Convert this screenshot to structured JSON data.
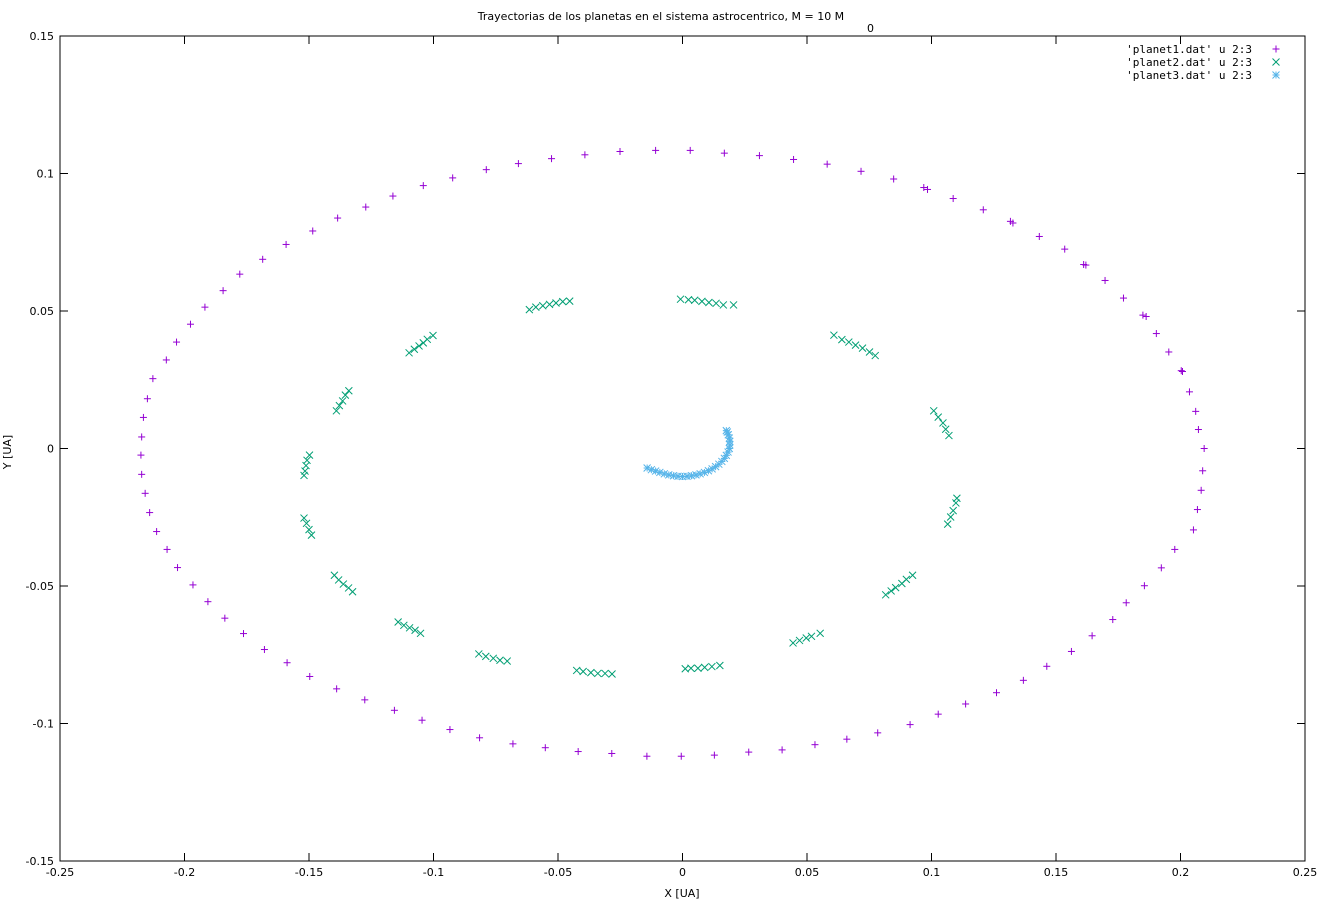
{
  "chart_data": {
    "type": "scatter",
    "title": "Trayectorias de los planetas en el sistema astrocentrico, M = 10 M",
    "title_subscript": "0",
    "xlabel": "X [UA]",
    "ylabel": "Y [UA]",
    "xlim": [
      -0.25,
      0.25
    ],
    "ylim": [
      -0.15,
      0.15
    ],
    "xticks": [
      "-0.25",
      "-0.2",
      "-0.15",
      "-0.1",
      "-0.05",
      "0",
      "0.05",
      "0.1",
      "0.15",
      "0.2",
      "0.25"
    ],
    "yticks": [
      "0.15",
      "0.1",
      "0.05",
      "0",
      "-0.05",
      "-0.1",
      "-0.15"
    ],
    "grid": false,
    "legend_position": "top-right",
    "series": [
      {
        "name": "'planet1.dat' u 2:3",
        "marker": "+",
        "color": "#9400d3",
        "points": [
          [
            0.2095,
            0.0
          ],
          [
            0.2089,
            -0.0081
          ],
          [
            0.2083,
            -0.0152
          ],
          [
            0.2068,
            -0.0222
          ],
          [
            0.2052,
            -0.0296
          ],
          [
            0.1977,
            -0.0367
          ],
          [
            0.1923,
            -0.0434
          ],
          [
            0.1855,
            -0.0499
          ],
          [
            0.1782,
            -0.0561
          ],
          [
            0.1728,
            -0.0622
          ],
          [
            0.1645,
            -0.0681
          ],
          [
            0.1562,
            -0.0738
          ],
          [
            0.1463,
            -0.0792
          ],
          [
            0.1369,
            -0.0843
          ],
          [
            0.1261,
            -0.0888
          ],
          [
            0.1137,
            -0.0929
          ],
          [
            0.1027,
            -0.0966
          ],
          [
            0.0914,
            -0.1004
          ],
          [
            0.0784,
            -0.1034
          ],
          [
            0.066,
            -0.1057
          ],
          [
            0.0532,
            -0.1077
          ],
          [
            0.04,
            -0.1096
          ],
          [
            0.0266,
            -0.1104
          ],
          [
            0.0128,
            -0.1115
          ],
          [
            -0.0005,
            -0.1119
          ],
          [
            -0.0143,
            -0.1119
          ],
          [
            -0.0284,
            -0.1109
          ],
          [
            -0.0419,
            -0.1102
          ],
          [
            -0.0551,
            -0.1088
          ],
          [
            -0.0681,
            -0.1074
          ],
          [
            -0.0815,
            -0.1052
          ],
          [
            -0.0934,
            -0.1022
          ],
          [
            -0.1046,
            -0.0988
          ],
          [
            -0.1157,
            -0.0952
          ],
          [
            -0.1276,
            -0.0914
          ],
          [
            -0.1389,
            -0.0874
          ],
          [
            -0.1497,
            -0.0829
          ],
          [
            -0.1588,
            -0.0779
          ],
          [
            -0.1679,
            -0.0731
          ],
          [
            -0.1763,
            -0.0673
          ],
          [
            -0.1838,
            -0.0617
          ],
          [
            -0.1906,
            -0.0557
          ],
          [
            -0.1966,
            -0.0496
          ],
          [
            -0.2028,
            -0.0433
          ],
          [
            -0.207,
            -0.0367
          ],
          [
            -0.2112,
            -0.0302
          ],
          [
            -0.214,
            -0.0233
          ],
          [
            -0.2158,
            -0.0163
          ],
          [
            -0.2172,
            -0.0094
          ],
          [
            -0.2175,
            -0.0024
          ],
          [
            -0.2172,
            0.0042
          ],
          [
            -0.2165,
            0.0113
          ],
          [
            -0.2149,
            0.0181
          ],
          [
            -0.2127,
            0.0254
          ],
          [
            -0.2073,
            0.0322
          ],
          [
            -0.2032,
            0.0387
          ],
          [
            -0.1976,
            0.0452
          ],
          [
            -0.1918,
            0.0514
          ],
          [
            -0.1845,
            0.0574
          ],
          [
            -0.1778,
            0.0634
          ],
          [
            -0.1686,
            0.0688
          ],
          [
            -0.1592,
            0.0742
          ],
          [
            -0.1485,
            0.0791
          ],
          [
            -0.1385,
            0.0838
          ],
          [
            -0.1272,
            0.0878
          ],
          [
            -0.1163,
            0.0918
          ],
          [
            -0.1041,
            0.0956
          ],
          [
            -0.0923,
            0.0984
          ],
          [
            -0.0788,
            0.1014
          ],
          [
            -0.0659,
            0.1036
          ],
          [
            -0.0526,
            0.1054
          ],
          [
            -0.0392,
            0.1068
          ],
          [
            -0.0251,
            0.108
          ],
          [
            -0.0108,
            0.1084
          ],
          [
            0.0031,
            0.1084
          ],
          [
            0.0168,
            0.1074
          ],
          [
            0.0309,
            0.1065
          ],
          [
            0.0446,
            0.1051
          ],
          [
            0.0581,
            0.1034
          ],
          [
            0.0717,
            0.1008
          ],
          [
            0.0848,
            0.098
          ],
          [
            0.0969,
            0.0949
          ],
          [
            0.0984,
            0.0942
          ],
          [
            0.1087,
            0.0909
          ],
          [
            0.1208,
            0.0868
          ],
          [
            0.1317,
            0.0826
          ],
          [
            0.1327,
            0.082
          ],
          [
            0.1433,
            0.0771
          ],
          [
            0.1535,
            0.0725
          ],
          [
            0.1611,
            0.0669
          ],
          [
            0.162,
            0.0667
          ],
          [
            0.1697,
            0.0611
          ],
          [
            0.1771,
            0.0547
          ],
          [
            0.1849,
            0.0485
          ],
          [
            0.1862,
            0.048
          ],
          [
            0.1903,
            0.0418
          ],
          [
            0.1953,
            0.0351
          ],
          [
            0.2003,
            0.0283
          ],
          [
            0.2008,
            0.028
          ],
          [
            0.2036,
            0.0206
          ],
          [
            0.2061,
            0.0135
          ],
          [
            0.2072,
            0.0069
          ]
        ]
      },
      {
        "name": "'planet2.dat' u 2:3",
        "marker": "x",
        "color": "#009e73",
        "points": [
          [
            -0.0615,
            0.0505
          ],
          [
            -0.0589,
            0.0514
          ],
          [
            -0.0561,
            0.0519
          ],
          [
            -0.0534,
            0.0524
          ],
          [
            -0.0508,
            0.0529
          ],
          [
            -0.0481,
            0.0534
          ],
          [
            -0.0453,
            0.0536
          ],
          [
            -0.0008,
            0.0543
          ],
          [
            0.0024,
            0.0541
          ],
          [
            0.0049,
            0.0539
          ],
          [
            0.0078,
            0.0535
          ],
          [
            0.0106,
            0.0531
          ],
          [
            0.0135,
            0.0528
          ],
          [
            0.0164,
            0.0522
          ],
          [
            0.0205,
            0.0522
          ],
          [
            0.0608,
            0.0412
          ],
          [
            0.064,
            0.0396
          ],
          [
            0.0668,
            0.0387
          ],
          [
            0.0695,
            0.0376
          ],
          [
            0.0723,
            0.0365
          ],
          [
            0.0751,
            0.0351
          ],
          [
            0.0774,
            0.0338
          ],
          [
            0.1009,
            0.0137
          ],
          [
            0.1027,
            0.0114
          ],
          [
            0.1046,
            0.0093
          ],
          [
            0.1057,
            0.007
          ],
          [
            0.107,
            0.0047
          ],
          [
            0.1102,
            -0.0181
          ],
          [
            0.1098,
            -0.0198
          ],
          [
            0.1087,
            -0.0226
          ],
          [
            0.1077,
            -0.0249
          ],
          [
            0.1065,
            -0.0275
          ],
          [
            0.0924,
            -0.0461
          ],
          [
            0.0899,
            -0.0476
          ],
          [
            0.0881,
            -0.0491
          ],
          [
            0.0856,
            -0.0506
          ],
          [
            0.0838,
            -0.0518
          ],
          [
            0.0816,
            -0.0532
          ],
          [
            0.0553,
            -0.0672
          ],
          [
            0.0518,
            -0.0683
          ],
          [
            0.0497,
            -0.0689
          ],
          [
            0.047,
            -0.0698
          ],
          [
            0.0444,
            -0.0707
          ],
          [
            0.015,
            -0.0789
          ],
          [
            0.0118,
            -0.0793
          ],
          [
            0.0089,
            -0.0796
          ],
          [
            0.0062,
            -0.0799
          ],
          [
            0.0034,
            -0.0799
          ],
          [
            0.0011,
            -0.0801
          ],
          [
            -0.0425,
            -0.0807
          ],
          [
            -0.0399,
            -0.0811
          ],
          [
            -0.0368,
            -0.0815
          ],
          [
            -0.034,
            -0.0818
          ],
          [
            -0.0311,
            -0.0818
          ],
          [
            -0.0283,
            -0.082
          ],
          [
            -0.0818,
            -0.0747
          ],
          [
            -0.079,
            -0.0756
          ],
          [
            -0.076,
            -0.0763
          ],
          [
            -0.0733,
            -0.077
          ],
          [
            -0.0704,
            -0.0773
          ],
          [
            -0.1142,
            -0.0631
          ],
          [
            -0.1119,
            -0.0643
          ],
          [
            -0.1096,
            -0.0652
          ],
          [
            -0.1074,
            -0.0661
          ],
          [
            -0.1052,
            -0.0672
          ],
          [
            -0.1398,
            -0.0461
          ],
          [
            -0.1381,
            -0.0478
          ],
          [
            -0.1362,
            -0.0493
          ],
          [
            -0.1341,
            -0.0507
          ],
          [
            -0.1325,
            -0.0521
          ],
          [
            -0.152,
            -0.0253
          ],
          [
            -0.151,
            -0.0272
          ],
          [
            -0.15,
            -0.0295
          ],
          [
            -0.149,
            -0.0315
          ],
          [
            -0.1498,
            -0.0024
          ],
          [
            -0.1508,
            -0.0043
          ],
          [
            -0.1512,
            -0.0062
          ],
          [
            -0.1516,
            -0.0082
          ],
          [
            -0.152,
            -0.0098
          ],
          [
            -0.139,
            0.0137
          ],
          [
            -0.1378,
            0.0156
          ],
          [
            -0.1365,
            0.0173
          ],
          [
            -0.1354,
            0.0194
          ],
          [
            -0.134,
            0.021
          ],
          [
            -0.1098,
            0.0348
          ],
          [
            -0.1077,
            0.0361
          ],
          [
            -0.1058,
            0.0373
          ],
          [
            -0.1041,
            0.0384
          ],
          [
            -0.1025,
            0.0397
          ],
          [
            -0.1002,
            0.0411
          ]
        ]
      },
      {
        "name": "'planet3.dat' u 2:3",
        "marker": "*",
        "color": "#56b4e9",
        "points": [
          [
            -0.0142,
            -0.0071
          ],
          [
            -0.0125,
            -0.0077
          ],
          [
            -0.0108,
            -0.0082
          ],
          [
            -0.0091,
            -0.0087
          ],
          [
            -0.0073,
            -0.0092
          ],
          [
            -0.0055,
            -0.0096
          ],
          [
            -0.0036,
            -0.0099
          ],
          [
            -0.0018,
            -0.0101
          ],
          [
            0.0,
            -0.0102
          ],
          [
            0.0018,
            -0.0101
          ],
          [
            0.0036,
            -0.0099
          ],
          [
            0.0054,
            -0.0096
          ],
          [
            0.0071,
            -0.0092
          ],
          [
            0.0088,
            -0.0087
          ],
          [
            0.0104,
            -0.0081
          ],
          [
            0.0119,
            -0.0074
          ],
          [
            0.0133,
            -0.0066
          ],
          [
            0.0146,
            -0.0057
          ],
          [
            0.0158,
            -0.0047
          ],
          [
            0.0168,
            -0.0036
          ],
          [
            0.0176,
            -0.0025
          ],
          [
            0.0183,
            -0.0013
          ],
          [
            0.0188,
            0.0
          ],
          [
            0.019,
            0.0013
          ],
          [
            0.019,
            0.0026
          ],
          [
            0.0188,
            0.0038
          ],
          [
            0.0184,
            0.005
          ],
          [
            0.018,
            0.006
          ],
          [
            0.0176,
            0.0065
          ]
        ]
      }
    ]
  }
}
